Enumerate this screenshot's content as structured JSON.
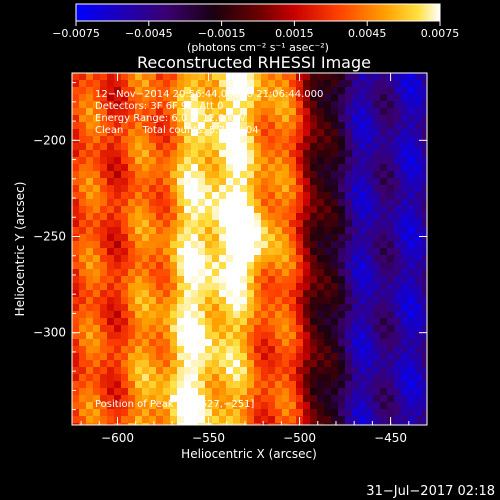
{
  "chart_data": {
    "type": "heatmap",
    "title": "Reconstructed RHESSI Image",
    "colorbar": {
      "ticks": [
        "−0.0075",
        "−0.0045",
        "−0.0015",
        "0.0015",
        "0.0045",
        "0.0075"
      ],
      "unit_label": "(photons cm⁻² s⁻¹ asec⁻²)",
      "range": [
        -0.0075,
        0.0075
      ],
      "colormap": "blue-purple-red-orange-yellow-white"
    },
    "xlabel": "Heliocentric X (arcsec)",
    "ylabel": "Heliocentric Y (arcsec)",
    "xlim": [
      -625,
      -430
    ],
    "ylim": [
      -348,
      -165
    ],
    "xticks": [
      {
        "value": -600,
        "label": "−600"
      },
      {
        "value": -550,
        "label": "−550"
      },
      {
        "value": -500,
        "label": "−500"
      },
      {
        "value": -450,
        "label": "−450"
      }
    ],
    "yticks": [
      {
        "value": -200,
        "label": "−200"
      },
      {
        "value": -250,
        "label": "−250"
      },
      {
        "value": -300,
        "label": "−300"
      }
    ],
    "annotations": [
      "12−Nov−2014 20:56:44.000 to 21:06:44.000",
      "Detectors: 3F 6F 9F, Att 0",
      "Energy Range: 6.0 − 12.0 keV",
      "Clean      Total counts: 5.75E+04"
    ],
    "peak_label": "Position of Peak = [−527,−251]",
    "peak": [
      -527,
      -251
    ],
    "timestamp": "31−Jul−2017 02:18"
  },
  "colors": {
    "background": "#000000",
    "text": "#ffffff",
    "axis": "#ffffff"
  }
}
